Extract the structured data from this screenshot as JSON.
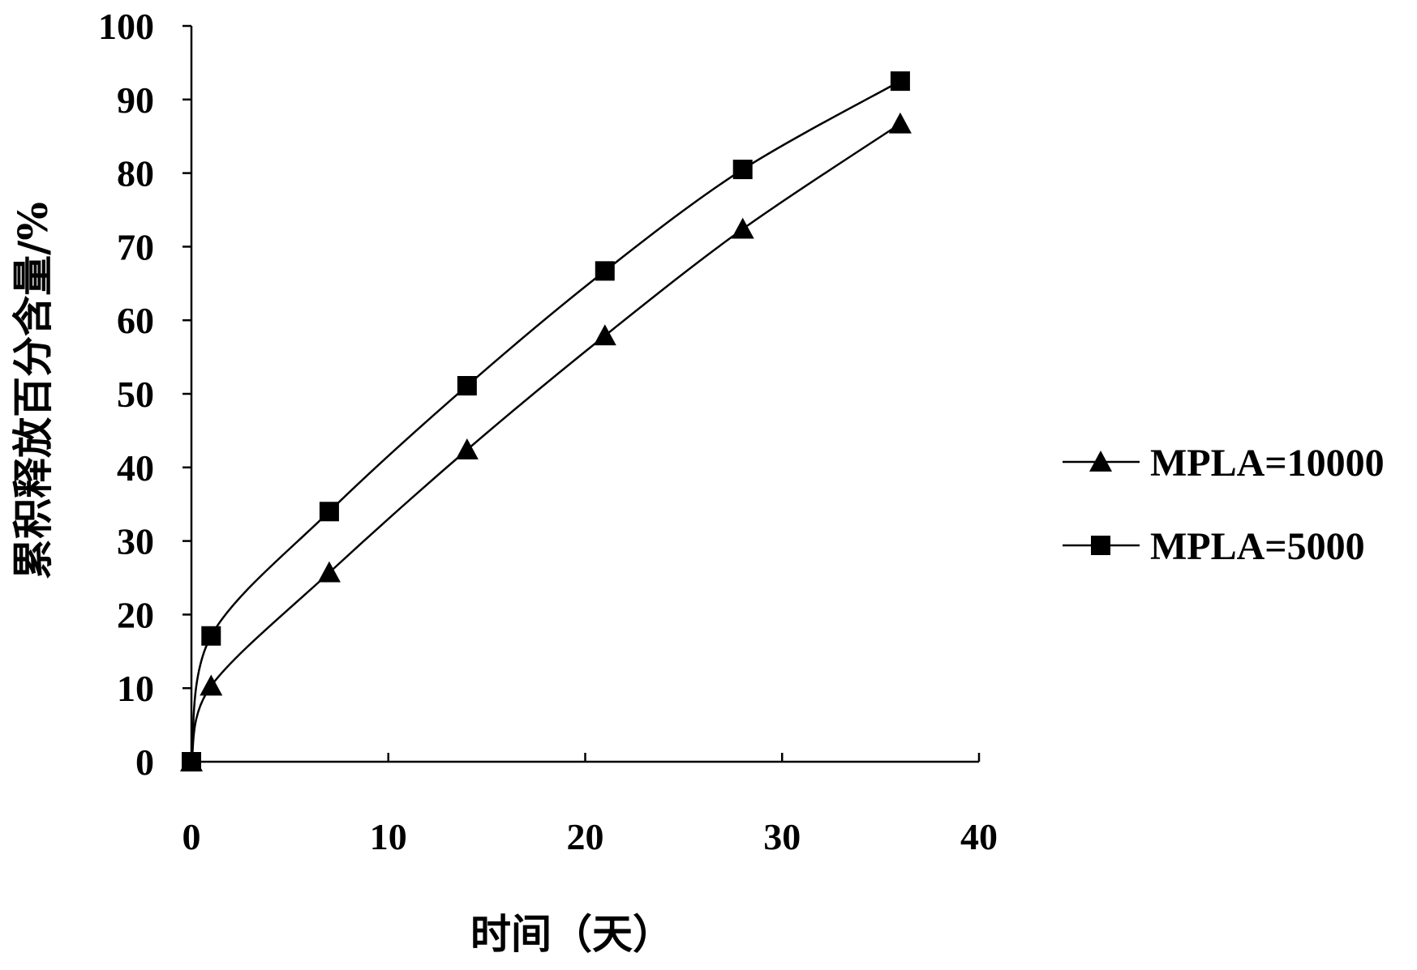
{
  "chart_data": {
    "type": "line",
    "title": "",
    "xlabel": "时间（天）",
    "ylabel": "累积释放百分含量/%",
    "xlim": [
      0,
      40
    ],
    "ylim": [
      0,
      100
    ],
    "xticks": [
      0,
      10,
      20,
      30,
      40
    ],
    "yticks": [
      0,
      10,
      20,
      30,
      40,
      50,
      60,
      70,
      80,
      90,
      100
    ],
    "grid": false,
    "legend_position": "right",
    "series": [
      {
        "name": "MPLA=10000",
        "marker": "triangle",
        "color": "#000000",
        "x": [
          0,
          1,
          7,
          14,
          21,
          28,
          36
        ],
        "y": [
          0,
          10.3,
          25.7,
          42.4,
          57.9,
          72.4,
          86.7
        ]
      },
      {
        "name": "MPLA=5000",
        "marker": "square",
        "color": "#000000",
        "x": [
          0,
          1,
          7,
          14,
          21,
          28,
          36
        ],
        "y": [
          0,
          17.1,
          34.0,
          51.1,
          66.7,
          80.5,
          92.5
        ]
      }
    ]
  }
}
